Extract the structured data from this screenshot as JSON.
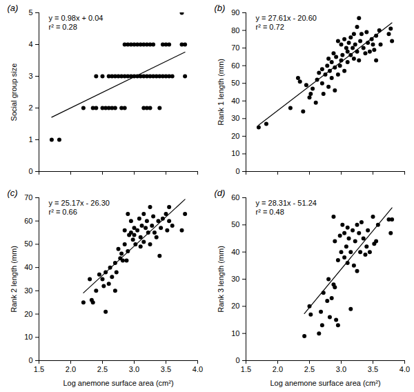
{
  "chart_data": [
    {
      "type": "scatter",
      "title": "(a)",
      "annotations": [
        "y = 0.98x + 0.04",
        "r² = 0.28"
      ],
      "y_label": "Social group size",
      "color": "#000000",
      "marker": "circle",
      "tick_labels": "y",
      "xlim": [
        1.5,
        4.0
      ],
      "xticks": [
        1.5,
        {
          "value": 2,
          "label": "2.0"
        },
        2.5,
        {
          "value": 3,
          "label": "3.0"
        },
        3.5,
        {
          "value": 4,
          "label": "4.0"
        }
      ],
      "ylim": [
        0,
        5
      ],
      "yticks": [
        0,
        1,
        2,
        3,
        4,
        5
      ],
      "x": [
        1.7,
        1.82,
        2.2,
        2.35,
        2.4,
        2.5,
        2.55,
        2.6,
        2.65,
        2.7,
        2.8,
        2.85,
        3.15,
        3.2,
        3.25,
        3.4,
        2.4,
        2.5,
        2.6,
        2.65,
        2.7,
        2.75,
        2.8,
        2.85,
        2.9,
        2.95,
        3.0,
        3.05,
        3.1,
        3.15,
        3.2,
        3.25,
        3.3,
        3.35,
        3.4,
        3.45,
        3.5,
        3.55,
        3.6,
        3.8,
        2.85,
        2.9,
        2.95,
        3.0,
        3.05,
        3.1,
        3.15,
        3.2,
        3.25,
        3.3,
        3.45,
        3.5,
        3.55,
        3.75,
        3.8,
        3.75
      ],
      "values": [
        1,
        1,
        2,
        2,
        2,
        2,
        2,
        2,
        2,
        2,
        2,
        2,
        2,
        2,
        2,
        2,
        3,
        3,
        3,
        3,
        3,
        3,
        3,
        3,
        3,
        3,
        3,
        3,
        3,
        3,
        3,
        3,
        3,
        3,
        3,
        3,
        3,
        3,
        3,
        3,
        4,
        4,
        4,
        4,
        4,
        4,
        4,
        4,
        4,
        4,
        4,
        4,
        4,
        4,
        4,
        5
      ],
      "trend_line": {
        "x": [
          1.7,
          3.8
        ],
        "values": [
          1.71,
          3.76
        ]
      }
    },
    {
      "type": "scatter",
      "title": "(b)",
      "annotations": [
        "y = 27.61x - 20.60",
        "r² = 0.72"
      ],
      "y_label": "Rank 1 length (mm)",
      "color": "#000000",
      "marker": "circle",
      "tick_labels": "y",
      "xlim": [
        1.5,
        4.0
      ],
      "xticks": [
        1.5,
        {
          "value": 2,
          "label": "2.0"
        },
        2.5,
        {
          "value": 3,
          "label": "3.0"
        },
        3.5,
        {
          "value": 4,
          "label": "4.0"
        }
      ],
      "ylim": [
        0,
        90
      ],
      "yticks": [
        0,
        10,
        20,
        30,
        40,
        50,
        60,
        70,
        80,
        90
      ],
      "x": [
        1.7,
        1.82,
        2.2,
        2.32,
        2.35,
        2.4,
        2.45,
        2.5,
        2.52,
        2.55,
        2.6,
        2.62,
        2.65,
        2.7,
        2.7,
        2.72,
        2.75,
        2.78,
        2.8,
        2.8,
        2.82,
        2.85,
        2.85,
        2.88,
        2.9,
        2.9,
        2.92,
        2.95,
        2.95,
        2.98,
        3.0,
        3.0,
        3.02,
        3.05,
        3.05,
        3.08,
        3.1,
        3.1,
        3.12,
        3.15,
        3.15,
        3.18,
        3.2,
        3.2,
        3.22,
        3.25,
        3.25,
        3.28,
        3.28,
        3.3,
        3.32,
        3.35,
        3.38,
        3.4,
        3.42,
        3.45,
        3.48,
        3.5,
        3.52,
        3.55,
        3.55,
        3.6,
        3.62,
        3.75,
        3.78,
        3.8
      ],
      "values": [
        25,
        27,
        36,
        53,
        51,
        34,
        49,
        42,
        44,
        47,
        39,
        52,
        56,
        50,
        58,
        44,
        55,
        60,
        64,
        48,
        57,
        62,
        53,
        67,
        59,
        46,
        65,
        74,
        55,
        60,
        72,
        63,
        66,
        57,
        75,
        70,
        68,
        62,
        73,
        76,
        66,
        70,
        78,
        64,
        72,
        82,
        68,
        87,
        63,
        74,
        78,
        70,
        67,
        79,
        73,
        68,
        75,
        72,
        69,
        77,
        63,
        80,
        72,
        78,
        81,
        74
      ],
      "trend_line": {
        "x": [
          1.7,
          3.8
        ],
        "values": [
          26.3,
          84.3
        ]
      }
    },
    {
      "type": "scatter",
      "title": "(c)",
      "annotations": [
        "y = 25.17x - 26.30",
        "r² = 0.66"
      ],
      "x_label": "Log anemone surface area (cm²)",
      "y_label": "Rank 2 length (mm)",
      "color": "#000000",
      "marker": "circle",
      "xlim": [
        1.5,
        4.0
      ],
      "xticks": [
        1.5,
        {
          "value": 2,
          "label": "2.0"
        },
        2.5,
        {
          "value": 3,
          "label": "3.0"
        },
        3.5,
        {
          "value": 4,
          "label": "4.0"
        }
      ],
      "ylim": [
        0,
        70
      ],
      "yticks": [
        0,
        10,
        20,
        30,
        40,
        50,
        60,
        70
      ],
      "x": [
        2.2,
        2.3,
        2.33,
        2.35,
        2.4,
        2.45,
        2.5,
        2.52,
        2.55,
        2.55,
        2.6,
        2.62,
        2.65,
        2.7,
        2.7,
        2.72,
        2.75,
        2.78,
        2.8,
        2.82,
        2.85,
        2.85,
        2.88,
        2.9,
        2.9,
        2.92,
        2.95,
        2.95,
        2.98,
        3.0,
        3.0,
        3.02,
        3.05,
        3.08,
        3.1,
        3.1,
        3.12,
        3.15,
        3.15,
        3.18,
        3.2,
        3.22,
        3.25,
        3.25,
        3.28,
        3.3,
        3.32,
        3.35,
        3.38,
        3.4,
        3.42,
        3.45,
        3.5,
        3.52,
        3.55,
        3.55,
        3.6,
        3.75,
        3.8
      ],
      "values": [
        25,
        35,
        26,
        25,
        30,
        37,
        35,
        32,
        21,
        38,
        33,
        40,
        36,
        42,
        30,
        38,
        48,
        44,
        46,
        43,
        50,
        56,
        43,
        63,
        47,
        54,
        55,
        60,
        52,
        54,
        57,
        50,
        56,
        61,
        49,
        53,
        58,
        63,
        51,
        57,
        60,
        55,
        66,
        50,
        58,
        62,
        55,
        53,
        60,
        45,
        57,
        61,
        63,
        56,
        66,
        60,
        58,
        56,
        63
      ],
      "trend_line": {
        "x": [
          2.2,
          3.8
        ],
        "values": [
          29.1,
          69.3
        ]
      }
    },
    {
      "type": "scatter",
      "title": "(d)",
      "annotations": [
        "y = 28.31x - 51.24",
        "r² = 0.48"
      ],
      "x_label": "Log anemone surface area (cm²)",
      "y_label": "Rank 3 length (mm)",
      "color": "#000000",
      "marker": "circle",
      "xlim": [
        1.5,
        4.0
      ],
      "xticks": [
        1.5,
        {
          "value": 2,
          "label": "2.0"
        },
        2.5,
        {
          "value": 3,
          "label": "3.0"
        },
        3.5,
        {
          "value": 4,
          "label": "4.0"
        }
      ],
      "ylim": [
        0,
        60
      ],
      "yticks": [
        0,
        10,
        20,
        30,
        40,
        50,
        60
      ],
      "x": [
        2.42,
        2.5,
        2.52,
        2.65,
        2.68,
        2.7,
        2.72,
        2.78,
        2.8,
        2.82,
        2.85,
        2.88,
        2.88,
        2.9,
        2.9,
        2.92,
        2.95,
        2.95,
        2.98,
        3.0,
        3.02,
        3.05,
        3.05,
        3.08,
        3.1,
        3.1,
        3.12,
        3.15,
        3.15,
        3.18,
        3.2,
        3.22,
        3.25,
        3.25,
        3.28,
        3.3,
        3.32,
        3.35,
        3.38,
        3.4,
        3.42,
        3.45,
        3.5,
        3.52,
        3.55,
        3.58,
        3.75,
        3.78,
        3.8
      ],
      "values": [
        9,
        20,
        17,
        10,
        18,
        13,
        25,
        22,
        30,
        16,
        23,
        28,
        53,
        27,
        44,
        15,
        13,
        37,
        46,
        40,
        50,
        38,
        47,
        42,
        36,
        49,
        45,
        40,
        19,
        48,
        35,
        44,
        50,
        33,
        47,
        40,
        51,
        45,
        39,
        42,
        48,
        40,
        53,
        43,
        44,
        50,
        52,
        47,
        52
      ],
      "trend_line": {
        "x": [
          2.42,
          3.8
        ],
        "values": [
          17.3,
          56.3
        ]
      }
    }
  ]
}
